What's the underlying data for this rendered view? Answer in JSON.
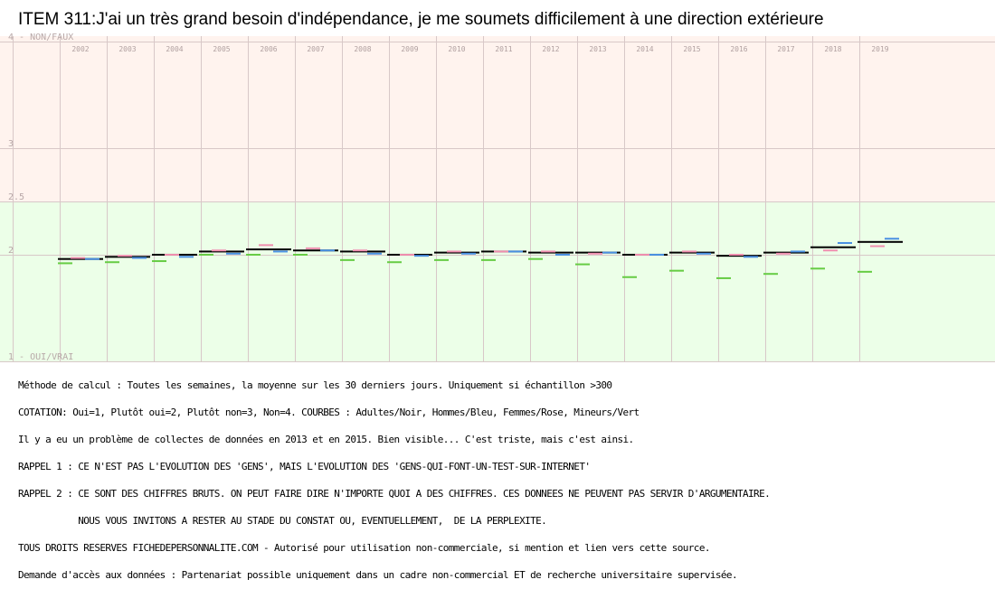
{
  "chart_data": {
    "type": "line",
    "title": "ITEM 311:J'ai un très grand besoin d'indépendance, je me soumets difficilement à une direction extérieure",
    "categories": [
      "2002",
      "2003",
      "2004",
      "2005",
      "2006",
      "2007",
      "2008",
      "2009",
      "2010",
      "2011",
      "2012",
      "2013",
      "2014",
      "2015",
      "2016",
      "2017",
      "2018",
      "2019"
    ],
    "y_tick_labels": [
      {
        "value": 4,
        "label": "4 - NON/FAUX"
      },
      {
        "value": 3,
        "label": "3"
      },
      {
        "value": 2.5,
        "label": "2.5"
      },
      {
        "value": 2,
        "label": "2"
      },
      {
        "value": 1,
        "label": "1 - OUI/VRAI"
      }
    ],
    "ylim": [
      1,
      4.05
    ],
    "ydir": "inverted",
    "grid": true,
    "zones": [
      {
        "from": 2.5,
        "to": 4.05,
        "color": "#fff3ee"
      },
      {
        "from": 1,
        "to": 2.5,
        "color": "#ecffe8"
      }
    ],
    "series": [
      {
        "name": "Adultes",
        "color": "#000000",
        "values": [
          1.96,
          1.98,
          2.0,
          2.03,
          2.05,
          2.04,
          2.03,
          2.0,
          2.02,
          2.03,
          2.02,
          2.02,
          2.0,
          2.02,
          1.99,
          2.02,
          2.07,
          2.12
        ]
      },
      {
        "name": "Hommes",
        "color": "#4a90e2",
        "values": [
          1.96,
          1.97,
          1.98,
          2.01,
          2.03,
          2.04,
          2.01,
          1.99,
          2.01,
          2.03,
          2.0,
          2.02,
          2.0,
          2.01,
          1.98,
          2.03,
          2.11,
          2.15
        ]
      },
      {
        "name": "Femmes",
        "color": "#f08fb0",
        "values": [
          1.97,
          1.99,
          2.0,
          2.04,
          2.09,
          2.06,
          2.04,
          2.0,
          2.03,
          2.03,
          2.03,
          2.01,
          2.0,
          2.03,
          2.0,
          2.01,
          2.04,
          2.08
        ]
      },
      {
        "name": "Mineurs",
        "color": "#66cc44",
        "values": [
          1.92,
          1.93,
          1.94,
          2.0,
          2.0,
          2.0,
          1.95,
          1.93,
          1.95,
          1.95,
          1.96,
          1.91,
          1.79,
          1.85,
          1.78,
          1.82,
          1.87,
          1.84
        ]
      }
    ]
  },
  "notes": [
    "Méthode de calcul : Toutes les semaines, la moyenne sur les 30 derniers jours. Uniquement si échantillon >300",
    "COTATION: Oui=1, Plutôt oui=2, Plutôt non=3, Non=4. COURBES : Adultes/Noir, Hommes/Bleu, Femmes/Rose, Mineurs/Vert",
    "Il y a eu un problème de collectes de données en 2013 et en 2015. Bien visible... C'est triste, mais c'est ainsi.",
    "RAPPEL 1 : CE N'EST PAS L'EVOLUTION DES 'GENS', MAIS L'EVOLUTION DES 'GENS-QUI-FONT-UN-TEST-SUR-INTERNET'",
    "RAPPEL 2 : CE SONT DES CHIFFRES BRUTS. ON PEUT FAIRE DIRE N'IMPORTE QUOI A DES CHIFFRES. CES DONNEES NE PEUVENT PAS SERVIR D'ARGUMENTAIRE.",
    "           NOUS VOUS INVITONS A RESTER AU STADE DU CONSTAT OU, EVENTUELLEMENT,  DE LA PERPLEXITE.",
    "TOUS DROITS RESERVES FICHEDEPERSONNALITE.COM - Autorisé pour utilisation non-commerciale, si mention et lien vers cette source.",
    "Demande d'accès aux données : Partenariat possible uniquement dans un cadre non-commercial ET de recherche universitaire supervisée."
  ]
}
